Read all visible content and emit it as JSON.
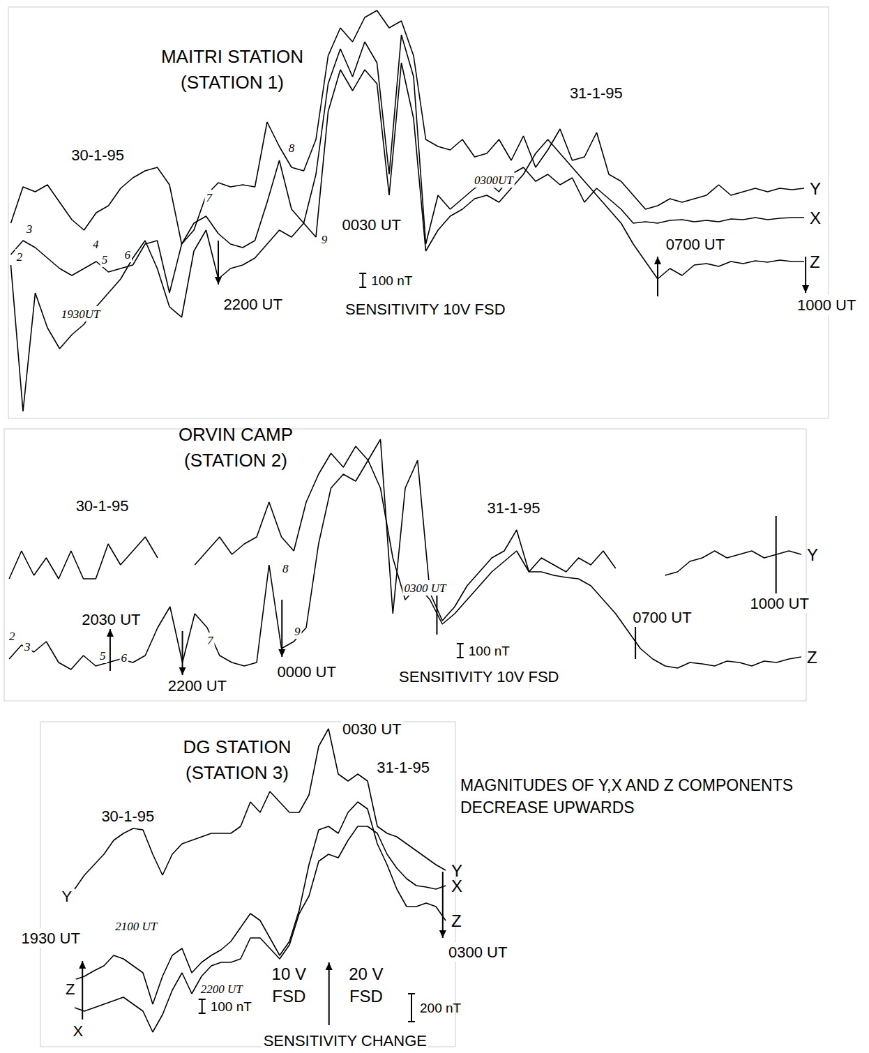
{
  "chart_data": [
    {
      "type": "line",
      "title": "MAITRI STATION",
      "subtitle": "(STATION 1)",
      "xlim": [
        17.7,
        34.5
      ],
      "ylim": [
        0,
        2950
      ],
      "grid": false,
      "tick_labels": false,
      "x": [
        17.75,
        18,
        18.25,
        18.5,
        18.75,
        19,
        19.25,
        19.5,
        19.75,
        20,
        20.25,
        20.5,
        20.75,
        21,
        21.25,
        21.5,
        21.75,
        22,
        22.25,
        22.5,
        22.75,
        23,
        23.25,
        23.5,
        23.75,
        24,
        24.25,
        24.5,
        24.75,
        25,
        25.25,
        25.5,
        25.75,
        26,
        26.25,
        26.5,
        26.75,
        27,
        27.25,
        27.5,
        27.75,
        28,
        28.25,
        28.5,
        28.75,
        29,
        29.25,
        29.5,
        29.75,
        30,
        30.25,
        30.5,
        30.75,
        31,
        31.25,
        31.5,
        31.75,
        32,
        32.25,
        32.5,
        32.75,
        33,
        33.25,
        33.5,
        33.75,
        34
      ],
      "series": [
        {
          "name": "Y",
          "color": "#000000",
          "values": [
            1400,
            1660,
            1625,
            1675,
            1550,
            1425,
            1350,
            1475,
            1525,
            1650,
            1725,
            1775,
            1800,
            1675,
            1250,
            1350,
            1600,
            1690,
            1660,
            1675,
            1660,
            2125,
            1950,
            1800,
            1775,
            2000,
            2600,
            2800,
            2700,
            2875,
            2925,
            2800,
            2850,
            2600,
            2000,
            1950,
            1925,
            2000,
            1875,
            1900,
            2000,
            1850,
            2025,
            1800,
            1925,
            2075,
            1850,
            1875,
            2050,
            1750,
            1700,
            1600,
            1500,
            1525,
            1575,
            1550,
            1575,
            1600,
            1675,
            1600,
            1625,
            1650,
            1625,
            1650,
            1640,
            1650
          ]
        },
        {
          "name": "X",
          "color": "#000000",
          "values": [
            1175,
            1275,
            1225,
            1150,
            1075,
            1025,
            1075,
            1125,
            1050,
            1075,
            1100,
            1250,
            1275,
            900,
            1250,
            1400,
            1450,
            1325,
            1250,
            1225,
            1275,
            1550,
            1850,
            1500,
            1400,
            1750,
            2400,
            2650,
            2450,
            2700,
            2550,
            1750,
            2750,
            2450,
            1250,
            1600,
            1500,
            1575,
            1650,
            1700,
            1625,
            1750,
            1800,
            1700,
            1750,
            1675,
            1725,
            1550,
            1650,
            1575,
            1500,
            1400,
            1410,
            1400,
            1420,
            1425,
            1410,
            1420,
            1410,
            1430,
            1425,
            1440,
            1425,
            1435,
            1440,
            1440
          ]
        },
        {
          "name": "Z",
          "color": "#000000",
          "values": [
            1100,
            50,
            900,
            650,
            500,
            600,
            675,
            800,
            900,
            1000,
            1150,
            1275,
            1075,
            800,
            725,
            1200,
            1350,
            1000,
            1075,
            1100,
            1150,
            1250,
            1350,
            1300,
            1400,
            1300,
            2200,
            2500,
            2350,
            2500,
            2400,
            1600,
            2550,
            2150,
            1200,
            1350,
            1450,
            1500,
            1575,
            1600,
            1550,
            1650,
            1750,
            1900,
            2000,
            1900,
            1800,
            1700,
            1600,
            1500,
            1400,
            1250,
            1125,
            1000,
            1075,
            1025,
            1100,
            1110,
            1090,
            1125,
            1110,
            1130,
            1120,
            1135,
            1125,
            1125
          ]
        }
      ],
      "annotations": [
        {
          "text": "30-1-95",
          "x": 19.53,
          "y": 1890
        },
        {
          "text": "31-1-95",
          "x": 29.74,
          "y": 2335
        },
        {
          "text": "0030 UT",
          "x": 25.14,
          "y": 1390
        },
        {
          "text": "2200 UT",
          "x": 22.71,
          "y": 820
        },
        {
          "text": "0700 UT",
          "x": 31.77,
          "y": 1250
        },
        {
          "text": "1000 UT",
          "x": 34.46,
          "y": 815
        },
        {
          "text": "SENSITIVITY 10V FSD",
          "x": 26.24,
          "y": 785
        }
      ],
      "handwritten": [
        {
          "text": "2",
          "x": 17.93,
          "y": 1160
        },
        {
          "text": "3",
          "x": 18.13,
          "y": 1360
        },
        {
          "text": "4",
          "x": 19.49,
          "y": 1250
        },
        {
          "text": "5",
          "x": 19.67,
          "y": 1140
        },
        {
          "text": "6",
          "x": 20.14,
          "y": 1175
        },
        {
          "text": "7",
          "x": 21.81,
          "y": 1585
        },
        {
          "text": "8",
          "x": 23.5,
          "y": 1940
        },
        {
          "text": "9",
          "x": 24.17,
          "y": 1285
        },
        {
          "text": "1930UT",
          "x": 19.18,
          "y": 750
        },
        {
          "text": "0300UT",
          "x": 27.64,
          "y": 1710
        }
      ],
      "arrows": [
        {
          "x": 22,
          "from": 1275,
          "to": 960
        },
        {
          "x": 31,
          "from": 875,
          "to": 1160
        },
        {
          "x": 34.03,
          "from": 1160,
          "to": 900
        }
      ],
      "scale_bars": [
        {
          "x": 24.96,
          "y": 940,
          "size": 100,
          "label": "100 nT"
        }
      ]
    },
    {
      "type": "line",
      "title": "ORVIN CAMP",
      "subtitle": "(STATION 2)",
      "xlim": [
        18.4,
        34.6
      ],
      "ylim": [
        0,
        1950
      ],
      "grid": false,
      "tick_labels": false,
      "x": [
        18.5,
        18.75,
        19,
        19.25,
        19.5,
        19.75,
        20,
        20.25,
        20.5,
        20.75,
        21,
        21.25,
        21.5,
        21.75,
        22,
        22.25,
        22.5,
        22.75,
        23,
        23.25,
        23.5,
        23.75,
        24,
        24.25,
        24.5,
        24.75,
        25,
        25.25,
        25.5,
        25.75,
        26,
        26.25,
        26.5,
        26.75,
        27,
        27.25,
        27.5,
        27.75,
        28,
        28.25,
        28.5,
        28.75,
        29,
        29.25,
        29.5,
        29.75,
        30,
        30.25,
        30.5,
        30.75,
        31,
        31.25,
        31.5,
        31.75,
        32,
        32.25,
        32.5,
        32.75,
        33,
        33.25,
        33.5,
        33.75,
        34,
        34.25,
        34.5
      ],
      "series": [
        {
          "name": "Y",
          "color": "#000000",
          "values": [
            875,
            1075,
            900,
            1025,
            875,
            1075,
            875,
            875,
            1125,
            975,
            1075,
            1175,
            1025,
            null,
            null,
            975,
            1075,
            1175,
            1050,
            1125,
            1175,
            1425,
            1175,
            1075,
            1425,
            1625,
            1775,
            1675,
            1825,
            1725,
            1875,
            625,
            1525,
            1725,
            775,
            575,
            675,
            825,
            925,
            1025,
            1075,
            1225,
            925,
            1025,
            975,
            925,
            1025,
            975,
            1075,
            950,
            null,
            null,
            null,
            900,
            925,
            1000,
            1025,
            1075,
            1025,
            1050,
            1075,
            1025,
            1050,
            1075,
            1050
          ]
        },
        {
          "name": "Z",
          "color": "#000000",
          "values": [
            300,
            400,
            350,
            425,
            275,
            225,
            325,
            250,
            275,
            300,
            275,
            325,
            525,
            675,
            275,
            625,
            525,
            325,
            275,
            250,
            275,
            975,
            375,
            425,
            525,
            1125,
            1525,
            1625,
            1575,
            1725,
            1525,
            1025,
            725,
            825,
            725,
            550,
            625,
            725,
            825,
            925,
            1000,
            1075,
            925,
            925,
            900,
            885,
            875,
            825,
            725,
            625,
            500,
            375,
            300,
            250,
            235,
            275,
            265,
            250,
            285,
            275,
            250,
            285,
            275,
            300,
            315
          ]
        }
      ],
      "annotations": [
        {
          "text": "30-1-95",
          "x": 20.38,
          "y": 1400
        },
        {
          "text": "31-1-95",
          "x": 28.69,
          "y": 1385
        },
        {
          "text": "2030 UT",
          "x": 20.56,
          "y": 585
        },
        {
          "text": "2200 UT",
          "x": 22.3,
          "y": 110
        },
        {
          "text": "0000 UT",
          "x": 24.51,
          "y": 210
        },
        {
          "text": "0700 UT",
          "x": 31.69,
          "y": 600
        },
        {
          "text": "1000 UT",
          "x": 34.06,
          "y": 700
        },
        {
          "text": "SENSITIVITY 10V FSD",
          "x": 27.99,
          "y": 175
        }
      ],
      "handwritten": [
        {
          "text": "2",
          "x": 18.56,
          "y": 465
        },
        {
          "text": "3",
          "x": 18.87,
          "y": 390
        },
        {
          "text": "5",
          "x": 20.39,
          "y": 325
        },
        {
          "text": "6",
          "x": 20.82,
          "y": 310
        },
        {
          "text": "7",
          "x": 22.56,
          "y": 435
        },
        {
          "text": "8",
          "x": 24.08,
          "y": 950
        },
        {
          "text": "9",
          "x": 24.32,
          "y": 500
        },
        {
          "text": "0300 UT",
          "x": 26.9,
          "y": 810
        }
      ],
      "arrows": [
        {
          "x": 20.54,
          "from": 215,
          "to": 515
        },
        {
          "x": 22,
          "from": 500,
          "to": 185
        },
        {
          "x": 24.01,
          "from": 725,
          "to": 315
        },
        {
          "x": 27.14,
          "from": 475,
          "to": 835
        },
        {
          "x": 31.15,
          "from": 300,
          "to": 650
        },
        {
          "x": 33.99,
          "from": 1325,
          "to": 650
        }
      ],
      "scale_bars": [
        {
          "x": 27.61,
          "y": 310,
          "size": 100,
          "label": "100 nT"
        }
      ]
    },
    {
      "type": "line",
      "title": "DG STATION",
      "subtitle": "(STATION 3)",
      "xlim": [
        18.9,
        27.4
      ],
      "ylim": [
        -80,
        2250
      ],
      "grid": false,
      "tick_labels": false,
      "x": [
        19.6,
        19.8,
        20,
        20.2,
        20.4,
        20.6,
        20.8,
        21,
        21.2,
        21.4,
        21.6,
        21.8,
        22,
        22.2,
        22.4,
        22.6,
        22.8,
        23,
        23.2,
        23.4,
        23.6,
        23.8,
        24,
        24.2,
        24.4,
        24.6,
        24.8,
        25,
        25.2,
        25.4,
        25.6,
        25.8,
        26,
        26.2,
        26.4,
        26.6,
        26.8,
        27,
        27.2
      ],
      "series": [
        {
          "name": "Y",
          "color": "#000000",
          "values": [
            1050,
            1150,
            1225,
            1300,
            1400,
            1450,
            1485,
            1475,
            1300,
            1150,
            1300,
            1375,
            1400,
            1425,
            1450,
            1450,
            1450,
            1500,
            1675,
            1600,
            1750,
            1675,
            1600,
            1600,
            1725,
            2075,
            2200,
            1875,
            1825,
            1875,
            1825,
            1500,
            1450,
            1425,
            1375,
            1325,
            1275,
            1225,
            1185
          ]
        },
        {
          "name": "X",
          "color": "#000000",
          "values": [
            200,
            175,
            200,
            225,
            250,
            275,
            225,
            175,
            25,
            150,
            325,
            450,
            300,
            425,
            500,
            525,
            525,
            550,
            700,
            700,
            625,
            550,
            650,
            875,
            1000,
            1250,
            1300,
            1275,
            1400,
            1500,
            1500,
            1450,
            1300,
            1200,
            1125,
            1075,
            1065,
            1050,
            1075
          ]
        },
        {
          "name": "Z",
          "color": "#000000",
          "values": [
            400,
            425,
            465,
            500,
            575,
            550,
            500,
            450,
            225,
            425,
            575,
            625,
            450,
            525,
            575,
            615,
            675,
            775,
            875,
            825,
            700,
            575,
            675,
            900,
            1225,
            1475,
            1500,
            1450,
            1600,
            1675,
            1625,
            1375,
            1225,
            1050,
            925,
            925,
            950,
            925,
            825
          ]
        }
      ],
      "annotations": [
        {
          "text": "30-1-95",
          "x": 20.69,
          "y": 1575
        },
        {
          "text": "31-1-95",
          "x": 26.33,
          "y": 1925
        },
        {
          "text": "0030 UT",
          "x": 25.69,
          "y": 2200
        },
        {
          "text": "1930 UT",
          "x": 19.11,
          "y": 700
        },
        {
          "text": "0300 UT",
          "x": 27.86,
          "y": 600
        },
        {
          "text": "SENSITIVITY CHANGE",
          "x": 25.14,
          "y": -35
        },
        {
          "text": "Y",
          "x": 19.44,
          "y": 1000
        },
        {
          "text": "Z",
          "x": 19.51,
          "y": 335
        },
        {
          "text": "X",
          "x": 19.67,
          "y": 35
        }
      ],
      "two_line_annotations": [
        {
          "text": "10 V FSD",
          "x": 23.99,
          "y": 365
        },
        {
          "text": "20 V FSD",
          "x": 25.57,
          "y": 365
        }
      ],
      "handwritten": [
        {
          "text": "2100 UT",
          "x": 20.86,
          "y": 785
        },
        {
          "text": "2200 UT",
          "x": 22.61,
          "y": 335
        }
      ],
      "note": "MAGNITUDES OF Y,X AND Z COMPONENTS DECREASE UPWARDS",
      "arrows": [
        {
          "x": 19.76,
          "from": 115,
          "to": 535
        },
        {
          "x": 24.81,
          "from": 75,
          "to": 525
        },
        {
          "x": 27.14,
          "from": 1175,
          "to": 700
        }
      ],
      "scale_bars": [
        {
          "x": 22.21,
          "y": 160,
          "size": 100,
          "label": "100 nT"
        },
        {
          "x": 26.5,
          "y": 100,
          "size": 200,
          "label": "200 nT"
        }
      ]
    }
  ]
}
